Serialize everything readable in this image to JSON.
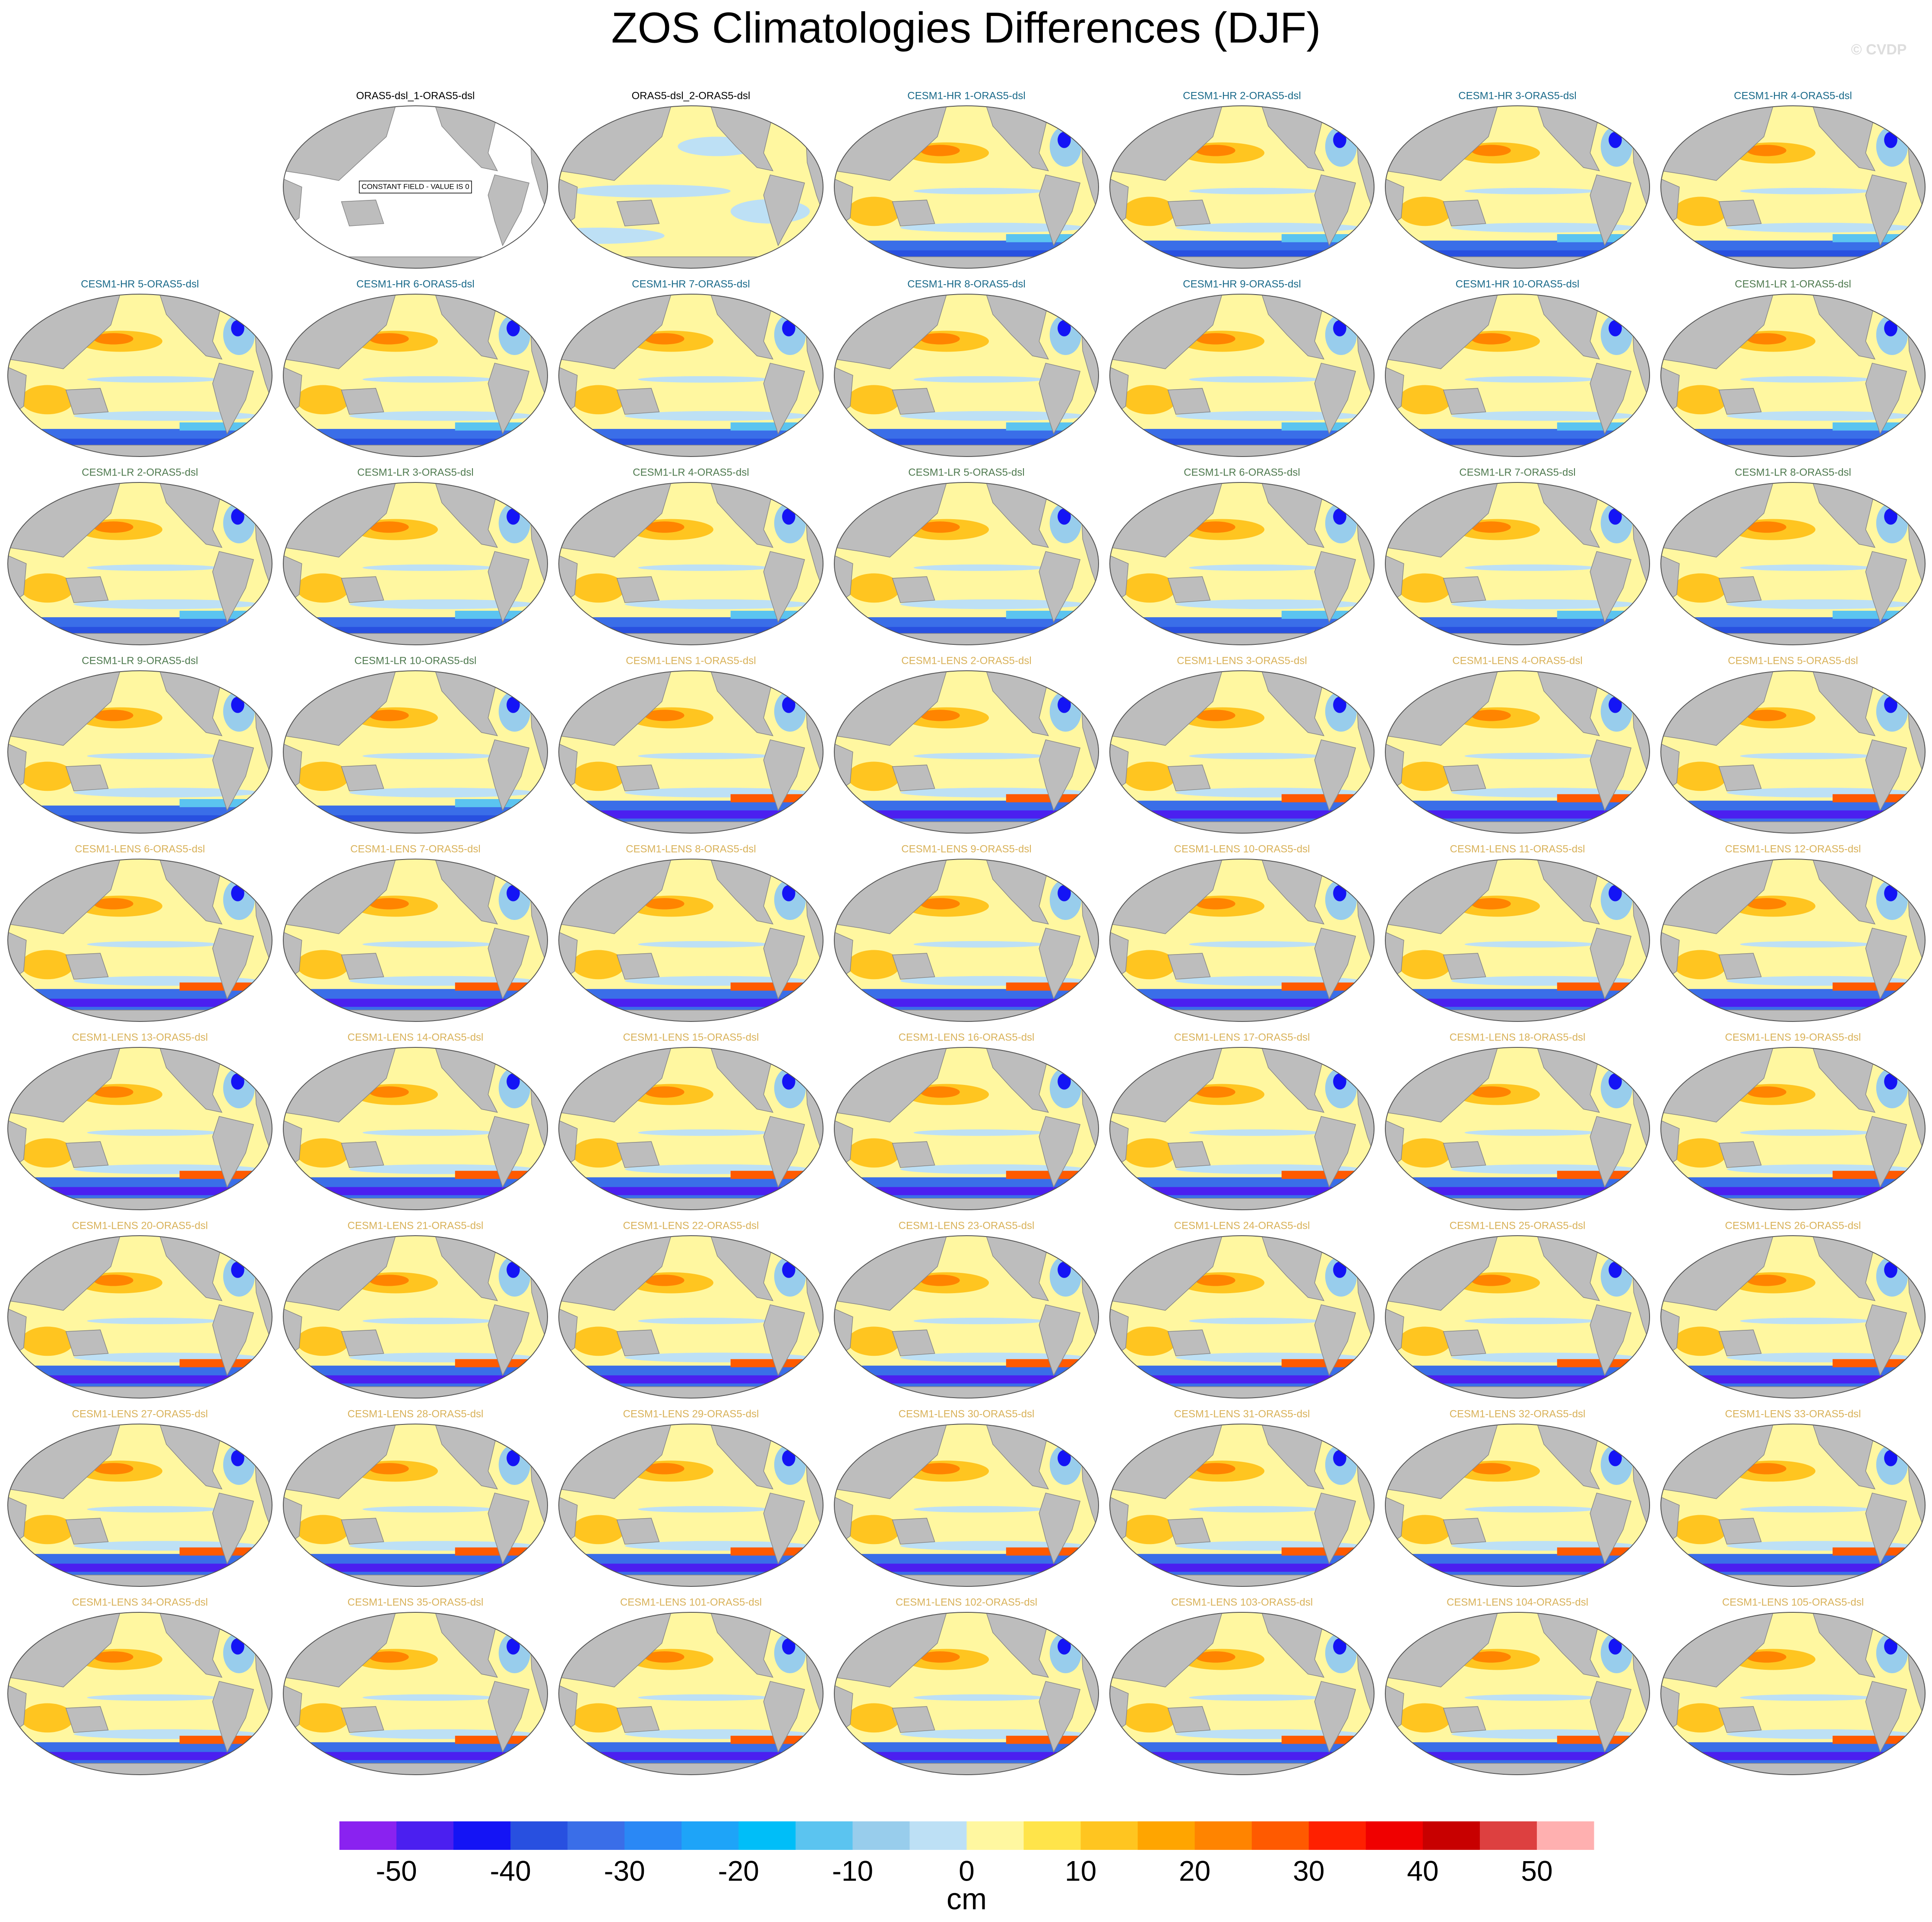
{
  "chart_data": {
    "type": "map-grid",
    "title": "ZOS Climatologies Differences (DJF)",
    "watermark": "© CVDP",
    "panels": [
      {
        "title": "ORAS5-dsl_1-ORAS5-dsl",
        "color": "#000000",
        "note": "CONSTANT FIELD - VALUE IS 0"
      },
      {
        "title": "ORAS5-dsl_2-ORAS5-dsl",
        "color": "#000000"
      },
      {
        "title": "CESM1-HR 1-ORAS5-dsl",
        "color": "#1a6a8a"
      },
      {
        "title": "CESM1-HR 2-ORAS5-dsl",
        "color": "#1a6a8a"
      },
      {
        "title": "CESM1-HR 3-ORAS5-dsl",
        "color": "#1a6a8a"
      },
      {
        "title": "CESM1-HR 4-ORAS5-dsl",
        "color": "#1a6a8a"
      },
      {
        "title": "CESM1-HR 5-ORAS5-dsl",
        "color": "#1a6a8a"
      },
      {
        "title": "CESM1-HR 6-ORAS5-dsl",
        "color": "#1a6a8a"
      },
      {
        "title": "CESM1-HR 7-ORAS5-dsl",
        "color": "#1a6a8a"
      },
      {
        "title": "CESM1-HR 8-ORAS5-dsl",
        "color": "#1a6a8a"
      },
      {
        "title": "CESM1-HR 9-ORAS5-dsl",
        "color": "#1a6a8a"
      },
      {
        "title": "CESM1-HR 10-ORAS5-dsl",
        "color": "#1a6a8a"
      },
      {
        "title": "CESM1-LR 1-ORAS5-dsl",
        "color": "#4f7a4f"
      },
      {
        "title": "CESM1-LR 2-ORAS5-dsl",
        "color": "#4f7a4f"
      },
      {
        "title": "CESM1-LR 3-ORAS5-dsl",
        "color": "#4f7a4f"
      },
      {
        "title": "CESM1-LR 4-ORAS5-dsl",
        "color": "#4f7a4f"
      },
      {
        "title": "CESM1-LR 5-ORAS5-dsl",
        "color": "#4f7a4f"
      },
      {
        "title": "CESM1-LR 6-ORAS5-dsl",
        "color": "#4f7a4f"
      },
      {
        "title": "CESM1-LR 7-ORAS5-dsl",
        "color": "#4f7a4f"
      },
      {
        "title": "CESM1-LR 8-ORAS5-dsl",
        "color": "#4f7a4f"
      },
      {
        "title": "CESM1-LR 9-ORAS5-dsl",
        "color": "#4f7a4f"
      },
      {
        "title": "CESM1-LR 10-ORAS5-dsl",
        "color": "#4f7a4f"
      },
      {
        "title": "CESM1-LENS 1-ORAS5-dsl",
        "color": "#d9b25a"
      },
      {
        "title": "CESM1-LENS 2-ORAS5-dsl",
        "color": "#d9b25a"
      },
      {
        "title": "CESM1-LENS 3-ORAS5-dsl",
        "color": "#d9b25a"
      },
      {
        "title": "CESM1-LENS 4-ORAS5-dsl",
        "color": "#d9b25a"
      },
      {
        "title": "CESM1-LENS 5-ORAS5-dsl",
        "color": "#d9b25a"
      },
      {
        "title": "CESM1-LENS 6-ORAS5-dsl",
        "color": "#d9b25a"
      },
      {
        "title": "CESM1-LENS 7-ORAS5-dsl",
        "color": "#d9b25a"
      },
      {
        "title": "CESM1-LENS 8-ORAS5-dsl",
        "color": "#d9b25a"
      },
      {
        "title": "CESM1-LENS 9-ORAS5-dsl",
        "color": "#d9b25a"
      },
      {
        "title": "CESM1-LENS 10-ORAS5-dsl",
        "color": "#d9b25a"
      },
      {
        "title": "CESM1-LENS 11-ORAS5-dsl",
        "color": "#d9b25a"
      },
      {
        "title": "CESM1-LENS 12-ORAS5-dsl",
        "color": "#d9b25a"
      },
      {
        "title": "CESM1-LENS 13-ORAS5-dsl",
        "color": "#d9b25a"
      },
      {
        "title": "CESM1-LENS 14-ORAS5-dsl",
        "color": "#d9b25a"
      },
      {
        "title": "CESM1-LENS 15-ORAS5-dsl",
        "color": "#d9b25a"
      },
      {
        "title": "CESM1-LENS 16-ORAS5-dsl",
        "color": "#d9b25a"
      },
      {
        "title": "CESM1-LENS 17-ORAS5-dsl",
        "color": "#d9b25a"
      },
      {
        "title": "CESM1-LENS 18-ORAS5-dsl",
        "color": "#d9b25a"
      },
      {
        "title": "CESM1-LENS 19-ORAS5-dsl",
        "color": "#d9b25a"
      },
      {
        "title": "CESM1-LENS 20-ORAS5-dsl",
        "color": "#d9b25a"
      },
      {
        "title": "CESM1-LENS 21-ORAS5-dsl",
        "color": "#d9b25a"
      },
      {
        "title": "CESM1-LENS 22-ORAS5-dsl",
        "color": "#d9b25a"
      },
      {
        "title": "CESM1-LENS 23-ORAS5-dsl",
        "color": "#d9b25a"
      },
      {
        "title": "CESM1-LENS 24-ORAS5-dsl",
        "color": "#d9b25a"
      },
      {
        "title": "CESM1-LENS 25-ORAS5-dsl",
        "color": "#d9b25a"
      },
      {
        "title": "CESM1-LENS 26-ORAS5-dsl",
        "color": "#d9b25a"
      },
      {
        "title": "CESM1-LENS 27-ORAS5-dsl",
        "color": "#d9b25a"
      },
      {
        "title": "CESM1-LENS 28-ORAS5-dsl",
        "color": "#d9b25a"
      },
      {
        "title": "CESM1-LENS 29-ORAS5-dsl",
        "color": "#d9b25a"
      },
      {
        "title": "CESM1-LENS 30-ORAS5-dsl",
        "color": "#d9b25a"
      },
      {
        "title": "CESM1-LENS 31-ORAS5-dsl",
        "color": "#d9b25a"
      },
      {
        "title": "CESM1-LENS 32-ORAS5-dsl",
        "color": "#d9b25a"
      },
      {
        "title": "CESM1-LENS 33-ORAS5-dsl",
        "color": "#d9b25a"
      },
      {
        "title": "CESM1-LENS 34-ORAS5-dsl",
        "color": "#d9b25a"
      },
      {
        "title": "CESM1-LENS 35-ORAS5-dsl",
        "color": "#d9b25a"
      },
      {
        "title": "CESM1-LENS 101-ORAS5-dsl",
        "color": "#d9b25a"
      },
      {
        "title": "CESM1-LENS 102-ORAS5-dsl",
        "color": "#d9b25a"
      },
      {
        "title": "CESM1-LENS 103-ORAS5-dsl",
        "color": "#d9b25a"
      },
      {
        "title": "CESM1-LENS 104-ORAS5-dsl",
        "color": "#d9b25a"
      },
      {
        "title": "CESM1-LENS 105-ORAS5-dsl",
        "color": "#d9b25a"
      }
    ],
    "colorbar": {
      "xlim": [
        -55,
        55
      ],
      "xticks": [
        -50,
        -40,
        -30,
        -20,
        -10,
        0,
        10,
        20,
        30,
        40,
        50
      ],
      "label": "cm",
      "colors": [
        "#8a22f0",
        "#4b1ff0",
        "#1414f5",
        "#2850e0",
        "#3a6ee8",
        "#2a88f5",
        "#1ea4f8",
        "#00bef8",
        "#5bc4f0",
        "#98cdec",
        "#bde0f5",
        "#fff7a0",
        "#ffe44a",
        "#ffc520",
        "#ffa500",
        "#ff8400",
        "#ff5a00",
        "#ff2000",
        "#f00000",
        "#c80000",
        "#dd4040",
        "#ffb0b0"
      ]
    }
  }
}
